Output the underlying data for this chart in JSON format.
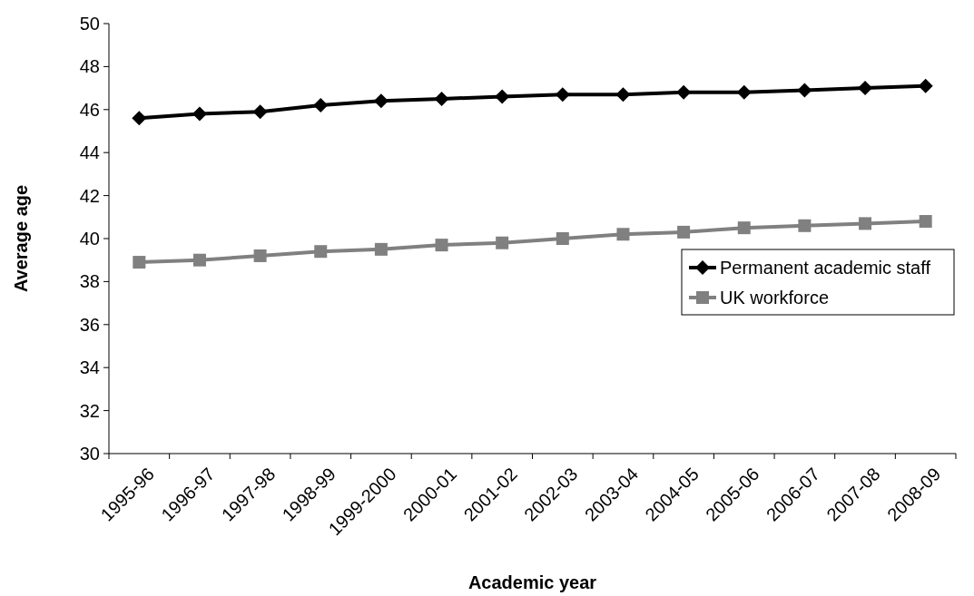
{
  "chart_data": {
    "type": "line",
    "xlabel": "Academic year",
    "ylabel": "Average age",
    "categories": [
      "1995-96",
      "1996-97",
      "1997-98",
      "1998-99",
      "1999-2000",
      "2000-01",
      "2001-02",
      "2002-03",
      "2003-04",
      "2004-05",
      "2005-06",
      "2006-07",
      "2007-08",
      "2008-09"
    ],
    "series": [
      {
        "name": "Permanent academic staff",
        "color": "#000000",
        "marker": "diamond",
        "values": [
          45.6,
          45.8,
          45.9,
          46.2,
          46.4,
          46.5,
          46.6,
          46.7,
          46.7,
          46.8,
          46.8,
          46.9,
          47.0,
          47.1
        ]
      },
      {
        "name": "UK workforce",
        "color": "#808080",
        "marker": "square",
        "values": [
          38.9,
          39.0,
          39.2,
          39.4,
          39.5,
          39.7,
          39.8,
          40.0,
          40.2,
          40.3,
          40.5,
          40.6,
          40.7,
          40.8
        ]
      }
    ],
    "ylim": [
      30,
      50
    ],
    "yticks": [
      30,
      32,
      34,
      36,
      38,
      40,
      42,
      44,
      46,
      48,
      50
    ],
    "grid": false,
    "legend": "right",
    "line_style": "solid"
  }
}
